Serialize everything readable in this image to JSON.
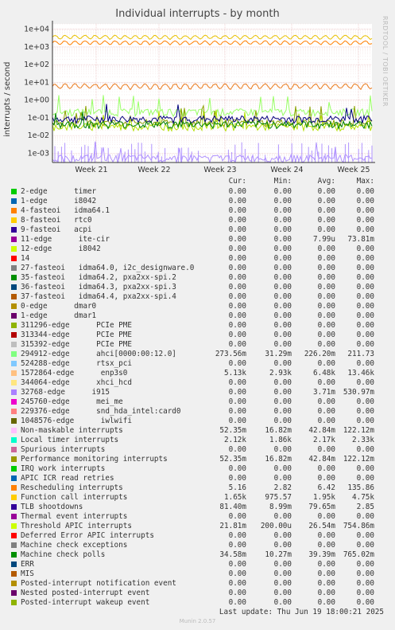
{
  "chart_data": {
    "type": "line",
    "title": "Individual interrupts - by month",
    "ylabel": "interrupts / second",
    "yscale": "log",
    "ylim": [
      0.0003,
      20000
    ],
    "yticks": [
      "1e-03",
      "1e-02",
      "1e-01",
      "1e+00",
      "1e+01",
      "1e+02",
      "1e+03",
      "1e+04"
    ],
    "xticks": [
      "Week 21",
      "Week 22",
      "Week 23",
      "Week 24",
      "Week 25"
    ],
    "grid": true,
    "series_approx": [
      {
        "name": "Function call interrupts",
        "approx_level": 4750,
        "color": "#e7c000"
      },
      {
        "name": "Local timer interrupts",
        "approx_level": 2330,
        "color": "#ff7f00"
      },
      {
        "name": "Rescheduling interrupts",
        "approx_level": 6.4,
        "color": "#ea7a1c"
      },
      {
        "name": "ahci[0000:00:12.0]",
        "approx_level": 0.2,
        "color": "#99ff66"
      },
      {
        "name": "Performance monitoring interrupts",
        "approx_level": 0.05,
        "color": "#8ca000"
      },
      {
        "name": "Threshold APIC interrupts",
        "approx_level": 0.03,
        "color": "#b4e000"
      },
      {
        "name": "TLB shootdowns",
        "approx_level": 0.08,
        "color": "#000080"
      },
      {
        "name": "Machine check polls",
        "approx_level": 0.04,
        "color": "#008000"
      },
      {
        "name": "Spurious interrupts",
        "approx_level": 0.0005,
        "color": "#b093ff"
      }
    ]
  },
  "header": {
    "cur": "Cur:",
    "min": "Min:",
    "avg": "Avg:",
    "max": "Max:"
  },
  "side_text": "RRDTOOL / TOBI OETIKER",
  "rows": [
    {
      "name": "2-edge      timer",
      "color": "#00cc00",
      "cur": "0.00",
      "min": "0.00",
      "avg": "0.00",
      "max": "0.00"
    },
    {
      "name": "1-edge      i8042",
      "color": "#0066b3",
      "cur": "0.00",
      "min": "0.00",
      "avg": "0.00",
      "max": "0.00"
    },
    {
      "name": "4-fasteoi   idma64.1",
      "color": "#ff8000",
      "cur": "0.00",
      "min": "0.00",
      "avg": "0.00",
      "max": "0.00"
    },
    {
      "name": "8-fasteoi   rtc0",
      "color": "#ffcc00",
      "cur": "0.00",
      "min": "0.00",
      "avg": "0.00",
      "max": "0.00"
    },
    {
      "name": "9-fasteoi   acpi",
      "color": "#330099",
      "cur": "0.00",
      "min": "0.00",
      "avg": "0.00",
      "max": "0.00"
    },
    {
      "name": "11-edge      ite-cir",
      "color": "#990099",
      "cur": "0.00",
      "min": "0.00",
      "avg": "7.99u",
      "max": "73.81m"
    },
    {
      "name": "12-edge      i8042",
      "color": "#ccff00",
      "cur": "0.00",
      "min": "0.00",
      "avg": "0.00",
      "max": "0.00"
    },
    {
      "name": "14",
      "color": "#ff0000",
      "cur": "0.00",
      "min": "0.00",
      "avg": "0.00",
      "max": "0.00"
    },
    {
      "name": "27-fasteoi   idma64.0, i2c_designware.0",
      "color": "#808080",
      "cur": "0.00",
      "min": "0.00",
      "avg": "0.00",
      "max": "0.00"
    },
    {
      "name": "35-fasteoi   idma64.2, pxa2xx-spi.2",
      "color": "#008f00",
      "cur": "0.00",
      "min": "0.00",
      "avg": "0.00",
      "max": "0.00"
    },
    {
      "name": "36-fasteoi   idma64.3, pxa2xx-spi.3",
      "color": "#00487d",
      "cur": "0.00",
      "min": "0.00",
      "avg": "0.00",
      "max": "0.00"
    },
    {
      "name": "37-fasteoi   idma64.4, pxa2xx-spi.4",
      "color": "#b35a00",
      "cur": "0.00",
      "min": "0.00",
      "avg": "0.00",
      "max": "0.00"
    },
    {
      "name": "0-edge      dmar0",
      "color": "#b38f00",
      "cur": "0.00",
      "min": "0.00",
      "avg": "0.00",
      "max": "0.00"
    },
    {
      "name": "1-edge      dmar1",
      "color": "#6b006b",
      "cur": "0.00",
      "min": "0.00",
      "avg": "0.00",
      "max": "0.00"
    },
    {
      "name": "311296-edge      PCIe PME",
      "color": "#8fb300",
      "cur": "0.00",
      "min": "0.00",
      "avg": "0.00",
      "max": "0.00"
    },
    {
      "name": "313344-edge      PCIe PME",
      "color": "#b30000",
      "cur": "0.00",
      "min": "0.00",
      "avg": "0.00",
      "max": "0.00"
    },
    {
      "name": "315392-edge      PCIe PME",
      "color": "#bebebe",
      "cur": "0.00",
      "min": "0.00",
      "avg": "0.00",
      "max": "0.00"
    },
    {
      "name": "294912-edge      ahci[0000:00:12.0]",
      "color": "#80ff80",
      "cur": "273.56m",
      "min": "31.29m",
      "avg": "226.20m",
      "max": "211.73"
    },
    {
      "name": "524288-edge      rtsx_pci",
      "color": "#80c9ff",
      "cur": "0.00",
      "min": "0.00",
      "avg": "0.00",
      "max": "0.00"
    },
    {
      "name": "1572864-edge      enp3s0",
      "color": "#ffc080",
      "cur": "5.13k",
      "min": "2.93k",
      "avg": "6.48k",
      "max": "13.46k"
    },
    {
      "name": "344064-edge      xhci_hcd",
      "color": "#ffe680",
      "cur": "0.00",
      "min": "0.00",
      "avg": "0.00",
      "max": "0.00"
    },
    {
      "name": "32768-edge      i915",
      "color": "#aa80ff",
      "cur": "0.00",
      "min": "0.00",
      "avg": "3.71m",
      "max": "530.97m"
    },
    {
      "name": "245760-edge      mei_me",
      "color": "#ee00cc",
      "cur": "0.00",
      "min": "0.00",
      "avg": "0.00",
      "max": "0.00"
    },
    {
      "name": "229376-edge      snd_hda_intel:card0",
      "color": "#ff8080",
      "cur": "0.00",
      "min": "0.00",
      "avg": "0.00",
      "max": "0.00"
    },
    {
      "name": "1048576-edge      iwlwifi",
      "color": "#666600",
      "cur": "0.00",
      "min": "0.00",
      "avg": "0.00",
      "max": "0.00"
    },
    {
      "name": "Non-maskable interrupts",
      "color": "#ffbfff",
      "cur": "52.35m",
      "min": "16.82m",
      "avg": "42.84m",
      "max": "122.12m"
    },
    {
      "name": "Local timer interrupts",
      "color": "#00ffcc",
      "cur": "2.12k",
      "min": "1.86k",
      "avg": "2.17k",
      "max": "2.33k"
    },
    {
      "name": "Spurious interrupts",
      "color": "#cc6699",
      "cur": "0.00",
      "min": "0.00",
      "avg": "0.00",
      "max": "0.00"
    },
    {
      "name": "Performance monitoring interrupts",
      "color": "#999900",
      "cur": "52.35m",
      "min": "16.82m",
      "avg": "42.84m",
      "max": "122.12m"
    },
    {
      "name": "IRQ work interrupts",
      "color": "#00cc00",
      "cur": "0.00",
      "min": "0.00",
      "avg": "0.00",
      "max": "0.00"
    },
    {
      "name": "APIC ICR read retries",
      "color": "#0066b3",
      "cur": "0.00",
      "min": "0.00",
      "avg": "0.00",
      "max": "0.00"
    },
    {
      "name": "Rescheduling interrupts",
      "color": "#ff8000",
      "cur": "5.16",
      "min": "2.82",
      "avg": "6.42",
      "max": "135.86"
    },
    {
      "name": "Function call interrupts",
      "color": "#ffcc00",
      "cur": "1.65k",
      "min": "975.57",
      "avg": "1.95k",
      "max": "4.75k"
    },
    {
      "name": "TLB shootdowns",
      "color": "#330099",
      "cur": "81.40m",
      "min": "8.99m",
      "avg": "79.65m",
      "max": "2.85"
    },
    {
      "name": "Thermal event interrupts",
      "color": "#990099",
      "cur": "0.00",
      "min": "0.00",
      "avg": "0.00",
      "max": "0.00"
    },
    {
      "name": "Threshold APIC interrupts",
      "color": "#ccff00",
      "cur": "21.81m",
      "min": "200.00u",
      "avg": "26.54m",
      "max": "754.86m"
    },
    {
      "name": "Deferred Error APIC interrupts",
      "color": "#ff0000",
      "cur": "0.00",
      "min": "0.00",
      "avg": "0.00",
      "max": "0.00"
    },
    {
      "name": "Machine check exceptions",
      "color": "#808080",
      "cur": "0.00",
      "min": "0.00",
      "avg": "0.00",
      "max": "0.00"
    },
    {
      "name": "Machine check polls",
      "color": "#008f00",
      "cur": "34.58m",
      "min": "10.27m",
      "avg": "39.39m",
      "max": "765.02m"
    },
    {
      "name": "ERR",
      "color": "#00487d",
      "cur": "0.00",
      "min": "0.00",
      "avg": "0.00",
      "max": "0.00"
    },
    {
      "name": "MIS",
      "color": "#b35a00",
      "cur": "0.00",
      "min": "0.00",
      "avg": "0.00",
      "max": "0.00"
    },
    {
      "name": "Posted-interrupt notification event",
      "color": "#b38f00",
      "cur": "0.00",
      "min": "0.00",
      "avg": "0.00",
      "max": "0.00"
    },
    {
      "name": "Nested posted-interrupt event",
      "color": "#6b006b",
      "cur": "0.00",
      "min": "0.00",
      "avg": "0.00",
      "max": "0.00"
    },
    {
      "name": "Posted-interrupt wakeup event",
      "color": "#8fb300",
      "cur": "0.00",
      "min": "0.00",
      "avg": "0.00",
      "max": "0.00"
    }
  ],
  "footer": "Last update: Thu Jun 19 18:00:21 2025",
  "munin": "Munin 2.0.57"
}
